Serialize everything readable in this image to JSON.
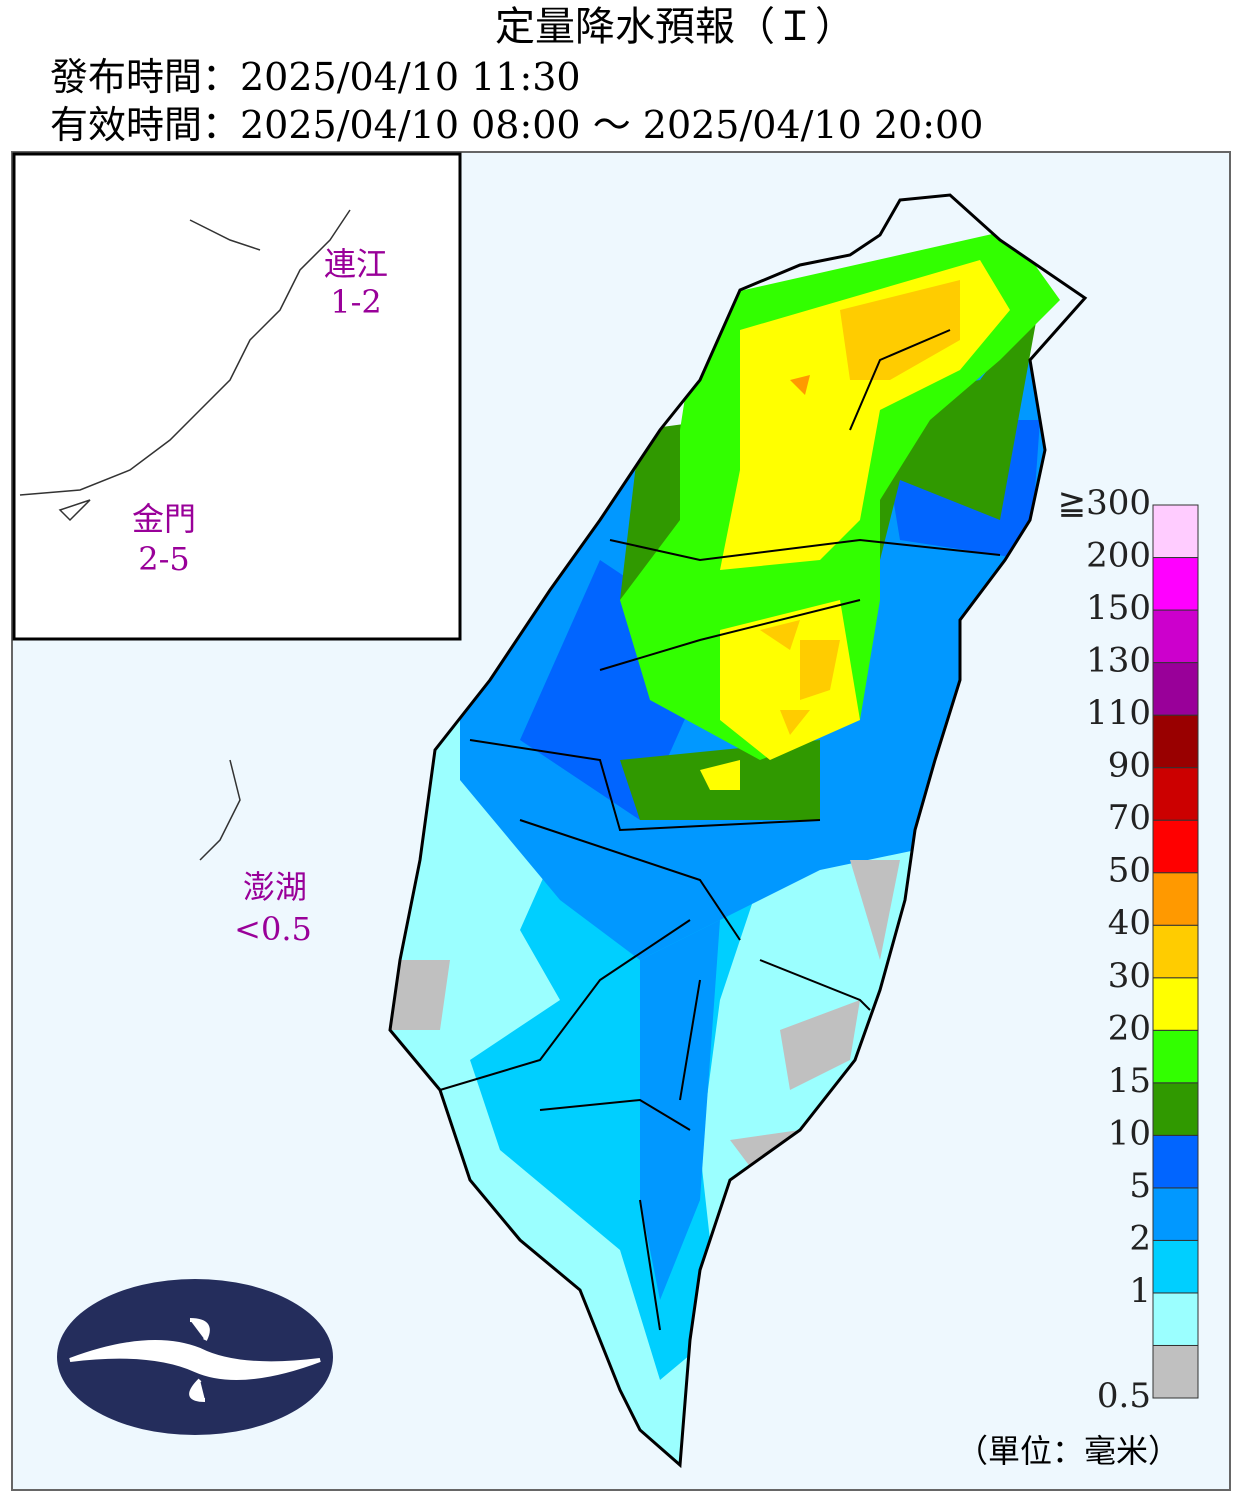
{
  "header": {
    "title": "定量降水預報（Ｉ）",
    "issued": "發布時間：2025/04/10 11:30",
    "valid": "有效時間：2025/04/10 08:00 ～ 2025/04/10 20:00"
  },
  "regions": [
    {
      "name": "連江",
      "range": "1-2"
    },
    {
      "name": "金門",
      "range": "2-5"
    },
    {
      "name": "澎湖",
      "range": "<0.5"
    }
  ],
  "legend": {
    "labels": [
      "0.5",
      "1",
      "2",
      "5",
      "10",
      "15",
      "20",
      "30",
      "40",
      "50",
      "70",
      "90",
      "110",
      "130",
      "150",
      "200",
      "≧300"
    ],
    "colors": [
      "#c0c0c0",
      "#9bffff",
      "#00cfff",
      "#0198ff",
      "#0165ff",
      "#309900",
      "#32ff00",
      "#ffff00",
      "#ffcc00",
      "#ff9900",
      "#ff0000",
      "#cc0000",
      "#990000",
      "#990099",
      "#cc00cc",
      "#ff00ff",
      "#ffccff"
    ],
    "unit": "（單位：毫米）"
  }
}
